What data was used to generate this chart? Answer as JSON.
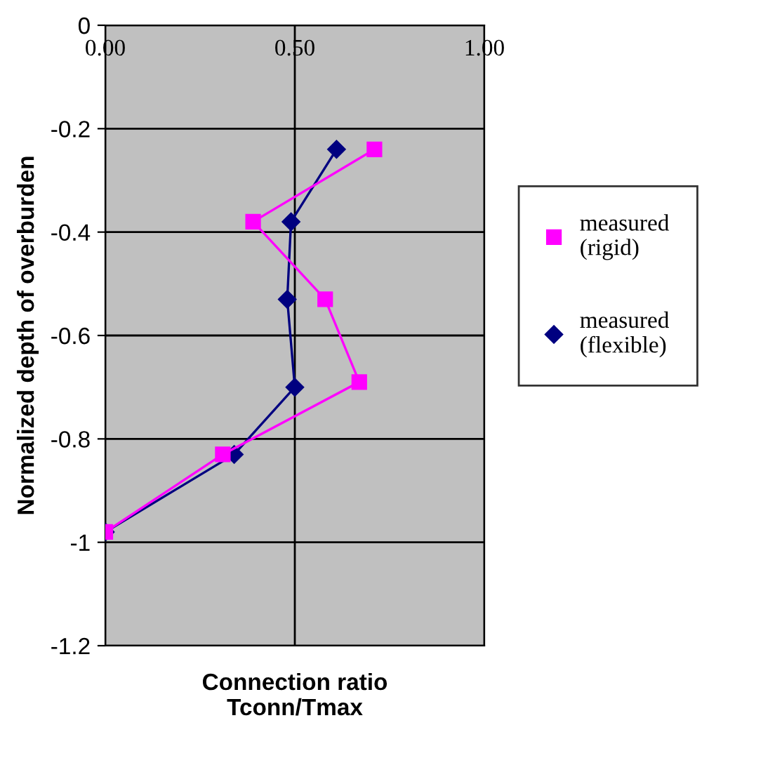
{
  "chart_data": {
    "type": "line",
    "xlabel": "Connection ratio\nTconn/Tmax",
    "ylabel": "Normalized depth of overburden",
    "xlim": [
      0,
      1
    ],
    "xticks": [
      {
        "value": 0,
        "label": "0.00"
      },
      {
        "value": 0.5,
        "label": "0.50"
      },
      {
        "value": 1,
        "label": "1.00"
      }
    ],
    "ylim": [
      -1.2,
      0
    ],
    "yticks": [
      -1.2,
      -1,
      -0.8,
      -0.6,
      -0.4,
      -0.2,
      0
    ],
    "grid": true,
    "legend": "right",
    "series": [
      {
        "name": "measured\n(rigid)",
        "color": "#ff00ff",
        "marker": "square",
        "x": [
          0.71,
          0.39,
          0.58,
          0.67,
          0.31,
          0.0
        ],
        "values": [
          -0.24,
          -0.38,
          -0.53,
          -0.69,
          -0.83,
          -0.98
        ]
      },
      {
        "name": "measured\n(flexible)",
        "color": "#000080",
        "marker": "diamond",
        "x": [
          0.61,
          0.49,
          0.48,
          0.5,
          0.34,
          0.0
        ],
        "values": [
          -0.24,
          -0.38,
          -0.53,
          -0.7,
          -0.83,
          -0.98
        ]
      }
    ]
  }
}
